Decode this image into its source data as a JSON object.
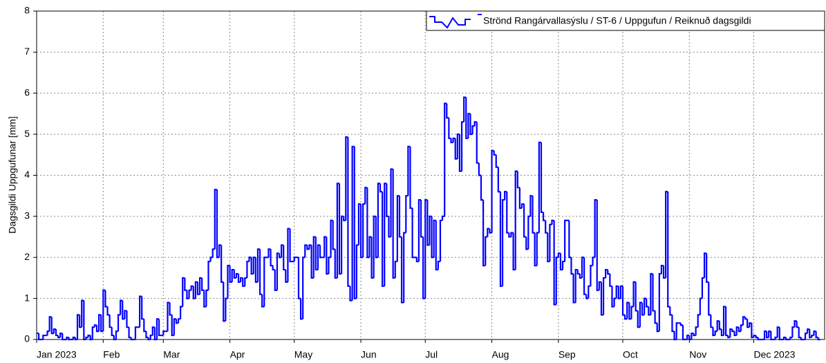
{
  "chart_data": {
    "type": "step",
    "ylabel": "Dagsgildi Uppgufunar [mm]",
    "series": [
      {
        "name": "Strönd Rangárvallasýslu / ST-6 / Uppgufun / Reiknuð dagsgildi",
        "color": "#0000ff",
        "values": [
          0.15,
          0,
          0,
          0.1,
          0.1,
          0.2,
          0.55,
          0.15,
          0.25,
          0.1,
          0.05,
          0.15,
          0,
          0,
          0.05,
          0,
          0,
          0.05,
          0,
          0.6,
          0.3,
          0.95,
          0,
          0.05,
          0.1,
          0,
          0.3,
          0.35,
          0.2,
          0.6,
          0.2,
          1.2,
          0.8,
          0.6,
          0.3,
          0.1,
          0,
          0.2,
          0.6,
          0.95,
          0.5,
          0.7,
          0.3,
          0.05,
          0,
          0,
          0.3,
          0.3,
          1.05,
          0.5,
          0.2,
          0.05,
          0,
          0.1,
          0.3,
          0,
          0.5,
          0.1,
          0.1,
          0.2,
          0.2,
          0.9,
          0.6,
          0.1,
          0.5,
          0.4,
          0.5,
          0.8,
          1.5,
          1.2,
          1.0,
          1.2,
          1.3,
          1.0,
          1.4,
          1.1,
          1.5,
          1.2,
          0.8,
          1.2,
          1.9,
          2.0,
          2.2,
          3.65,
          2.0,
          2.3,
          1.4,
          0.45,
          1.0,
          1.8,
          1.4,
          1.7,
          1.5,
          1.6,
          1.4,
          1.5,
          1.3,
          1.5,
          1.9,
          2.0,
          1.6,
          2.0,
          1.4,
          2.2,
          1.1,
          0.8,
          2.0,
          2.0,
          2.2,
          1.8,
          1.7,
          1.2,
          2.1,
          2.0,
          2.3,
          1.7,
          1.4,
          2.7,
          1.9,
          1.9,
          2.0,
          2.0,
          1.0,
          0.5,
          2.0,
          2.3,
          2.2,
          2.3,
          1.5,
          2.5,
          1.7,
          2.3,
          2.0,
          2.0,
          2.5,
          1.6,
          2.0,
          2.9,
          2.2,
          1.5,
          3.8,
          1.6,
          3.0,
          2.9,
          4.93,
          1.3,
          0.95,
          4.7,
          1.0,
          2.3,
          3.3,
          2.0,
          3.3,
          3.7,
          2.0,
          2.5,
          1.5,
          3.0,
          2.0,
          3.8,
          3.6,
          1.3,
          3.8,
          3.0,
          2.5,
          4.15,
          1.5,
          1.9,
          3.5,
          2.5,
          0.9,
          2.6,
          3.5,
          4.7,
          3.2,
          2.0,
          2.0,
          1.9,
          3.4,
          2.5,
          1.0,
          3.4,
          2.3,
          3.0,
          2.0,
          2.9,
          1.7,
          1.9,
          2.9,
          3.0,
          5.75,
          5.4,
          4.9,
          4.8,
          4.9,
          4.4,
          5.0,
          4.1,
          5.3,
          5.9,
          4.9,
          5.5,
          5.0,
          5.2,
          5.3,
          4.3,
          4.0,
          3.4,
          1.8,
          2.5,
          2.7,
          2.6,
          4.6,
          4.5,
          4.2,
          3.6,
          1.3,
          3.4,
          3.6,
          2.6,
          2.5,
          2.6,
          1.7,
          4.1,
          3.7,
          3.2,
          3.3,
          2.5,
          2.2,
          3.0,
          3.5,
          2.6,
          1.8,
          2.6,
          4.8,
          3.1,
          2.9,
          2.6,
          1.9,
          2.8,
          2.9,
          0.85,
          2.0,
          2.1,
          1.7,
          1.9,
          2.9,
          2.9,
          2.0,
          1.6,
          0.9,
          1.7,
          1.6,
          1.5,
          2.0,
          1.1,
          1.0,
          1.3,
          1.8,
          2.0,
          3.4,
          1.2,
          1.4,
          0.6,
          1.5,
          1.7,
          1.6,
          1.3,
          0.8,
          1.0,
          1.3,
          1.0,
          1.3,
          0.6,
          0.5,
          0.9,
          0.5,
          0.8,
          1.4,
          0.7,
          0.3,
          0.9,
          0.6,
          1.0,
          0.8,
          0.6,
          1.6,
          0.7,
          0.4,
          0.2,
          1.6,
          1.8,
          1.5,
          3.6,
          0.8,
          0.6,
          0.2,
          0,
          0.4,
          0.4,
          0.35,
          0,
          0,
          0.1,
          0,
          0.15,
          0.1,
          0.3,
          0.6,
          1.0,
          1.5,
          2.1,
          1.4,
          0.6,
          0.3,
          0.1,
          0.2,
          0.45,
          0.25,
          0.1,
          0.8,
          0.1,
          0.05,
          0.25,
          0.2,
          0.1,
          0.3,
          0.2,
          0.35,
          0.55,
          0.5,
          0.3,
          0.4,
          0.05,
          0.1,
          0.05,
          0,
          0,
          0,
          0.2,
          0.05,
          0.2,
          0,
          0,
          0.05,
          0.3,
          0,
          0,
          0.05,
          0,
          0,
          0.05,
          0.3,
          0.45,
          0.3,
          0.05,
          0,
          0,
          0.15,
          0.25,
          0.05,
          0.1,
          0.2,
          0.05,
          0
        ]
      }
    ],
    "xlim": [
      0,
      367
    ],
    "xticks": [
      {
        "value": 0,
        "label": "Jan 2023"
      },
      {
        "value": 31,
        "label": "Feb"
      },
      {
        "value": 59,
        "label": "Mar"
      },
      {
        "value": 90,
        "label": "Apr"
      },
      {
        "value": 120,
        "label": "May"
      },
      {
        "value": 151,
        "label": "Jun"
      },
      {
        "value": 181,
        "label": "Jul"
      },
      {
        "value": 212,
        "label": "Aug"
      },
      {
        "value": 243,
        "label": "Sep"
      },
      {
        "value": 273,
        "label": "Oct"
      },
      {
        "value": 304,
        "label": "Nov"
      },
      {
        "value": 334,
        "label": "Dec 2023"
      }
    ],
    "ylim": [
      0,
      8
    ],
    "yticks": [
      0,
      1,
      2,
      3,
      4,
      5,
      6,
      7,
      8
    ],
    "grid": true,
    "legend": "top-right"
  }
}
